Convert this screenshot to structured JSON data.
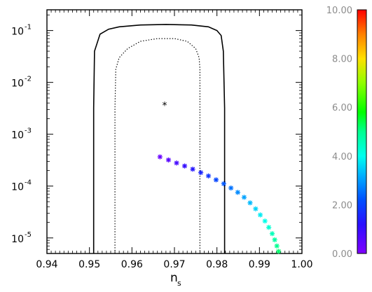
{
  "chart_data": {
    "type": "scatter",
    "xlabel_main": "n",
    "xlabel_sub": "s",
    "xlim": [
      0.94,
      1.0
    ],
    "ylim_log10": [
      -5.3,
      -0.6
    ],
    "y_scale": "log",
    "x_ticks": [
      "0.94",
      "0.95",
      "0.96",
      "0.97",
      "0.98",
      "0.99",
      "1.00"
    ],
    "x_tick_values": [
      0.94,
      0.95,
      0.96,
      0.97,
      0.98,
      0.99,
      1.0
    ],
    "y_tick_mantissa": "10",
    "y_ticks": [
      {
        "exp": "-1",
        "value": 0.1
      },
      {
        "exp": "-2",
        "value": 0.01
      },
      {
        "exp": "-3",
        "value": 0.001
      },
      {
        "exp": "-4",
        "value": 0.0001
      },
      {
        "exp": "-5",
        "value": 1e-05
      }
    ],
    "best_fit_point": {
      "x": 0.9677,
      "y": 0.0037,
      "marker": "*"
    },
    "contour_outer_solid": [
      [
        0.951,
        5e-06
      ],
      [
        0.951,
        0.0032
      ],
      [
        0.9512,
        0.04
      ],
      [
        0.9525,
        0.085
      ],
      [
        0.9545,
        0.106
      ],
      [
        0.957,
        0.118
      ],
      [
        0.962,
        0.128
      ],
      [
        0.968,
        0.131
      ],
      [
        0.974,
        0.128
      ],
      [
        0.978,
        0.118
      ],
      [
        0.98,
        0.1
      ],
      [
        0.981,
        0.08
      ],
      [
        0.9815,
        0.04
      ],
      [
        0.9818,
        0.0032
      ],
      [
        0.9818,
        5e-06
      ]
    ],
    "contour_inner_dotted": [
      [
        0.956,
        5e-06
      ],
      [
        0.956,
        0.0032
      ],
      [
        0.9562,
        0.018
      ],
      [
        0.957,
        0.03
      ],
      [
        0.959,
        0.045
      ],
      [
        0.962,
        0.062
      ],
      [
        0.966,
        0.07
      ],
      [
        0.97,
        0.07
      ],
      [
        0.973,
        0.062
      ],
      [
        0.975,
        0.045
      ],
      [
        0.9758,
        0.03
      ],
      [
        0.976,
        0.018
      ],
      [
        0.976,
        0.0032
      ],
      [
        0.976,
        5e-06
      ]
    ],
    "trajectory_points": [
      {
        "x": 0.9666,
        "y": 0.000366,
        "c": 0.3
      },
      {
        "x": 0.9686,
        "y": 0.000319,
        "c": 0.55
      },
      {
        "x": 0.9705,
        "y": 0.000279,
        "c": 0.8
      },
      {
        "x": 0.9724,
        "y": 0.000244,
        "c": 1.05
      },
      {
        "x": 0.9743,
        "y": 0.000212,
        "c": 1.3
      },
      {
        "x": 0.9762,
        "y": 0.000182,
        "c": 1.55
      },
      {
        "x": 0.978,
        "y": 0.000157,
        "c": 1.8
      },
      {
        "x": 0.9798,
        "y": 0.000132,
        "c": 2.05
      },
      {
        "x": 0.9816,
        "y": 0.000111,
        "c": 2.3
      },
      {
        "x": 0.9833,
        "y": 9.18e-05,
        "c": 2.55
      },
      {
        "x": 0.9849,
        "y": 7.57e-05,
        "c": 2.8
      },
      {
        "x": 0.9864,
        "y": 6.08e-05,
        "c": 3.05
      },
      {
        "x": 0.9878,
        "y": 4.75e-05,
        "c": 3.3
      },
      {
        "x": 0.9891,
        "y": 3.64e-05,
        "c": 3.55
      },
      {
        "x": 0.9902,
        "y": 2.78e-05,
        "c": 3.8
      },
      {
        "x": 0.9913,
        "y": 2.12e-05,
        "c": 4.05
      },
      {
        "x": 0.9922,
        "y": 1.6e-05,
        "c": 4.3
      },
      {
        "x": 0.993,
        "y": 1.21e-05,
        "c": 4.55
      },
      {
        "x": 0.9936,
        "y": 9.2e-06,
        "c": 4.8
      },
      {
        "x": 0.9941,
        "y": 7e-06,
        "c": 5.0
      },
      {
        "x": 0.9945,
        "y": 5.5e-06,
        "c": 5.2
      }
    ],
    "colorbar": {
      "range": [
        0,
        10
      ],
      "labels": [
        "10.00",
        "8.00",
        "6.00",
        "4.00",
        "2.00",
        "0.00"
      ],
      "label_values": [
        10,
        8,
        6,
        4,
        2,
        0
      ]
    },
    "grid": false
  }
}
